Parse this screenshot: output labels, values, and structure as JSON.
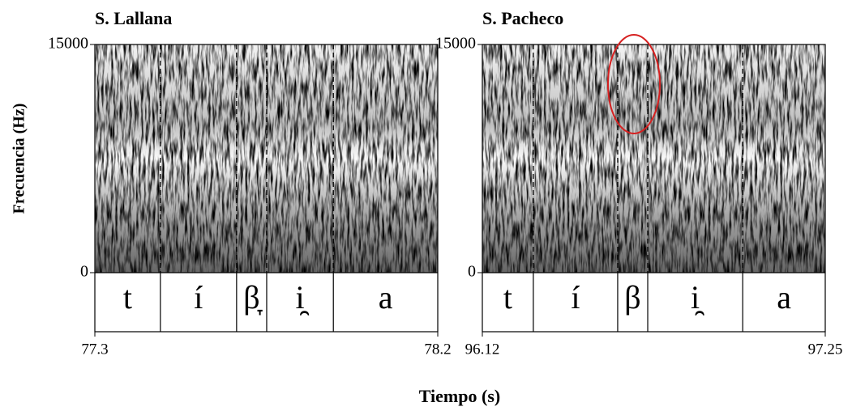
{
  "chart_data": [
    {
      "type": "spectrogram",
      "title": "S. Lallana",
      "y_label": "Frecuencia (Hz)",
      "ylim": [
        0,
        15000
      ],
      "yticks": [
        0,
        15000
      ],
      "xlim": [
        77.3,
        78.2
      ],
      "xticks": [
        77.3,
        78.2
      ],
      "boundaries": [
        77.472,
        77.672,
        77.751,
        77.926
      ],
      "segments": [
        "t",
        "í",
        "β̞",
        "i̯",
        "a"
      ]
    },
    {
      "type": "spectrogram",
      "title": "S. Pacheco",
      "ylim": [
        0,
        15000
      ],
      "yticks": [
        0,
        15000
      ],
      "xlim": [
        96.12,
        97.25
      ],
      "xticks": [
        96.12,
        97.25
      ],
      "boundaries": [
        96.288,
        96.566,
        96.665,
        96.978
      ],
      "segments": [
        "t",
        "í",
        "β",
        "i̯",
        "a"
      ]
    }
  ],
  "x_label": "Tiempo (s)"
}
